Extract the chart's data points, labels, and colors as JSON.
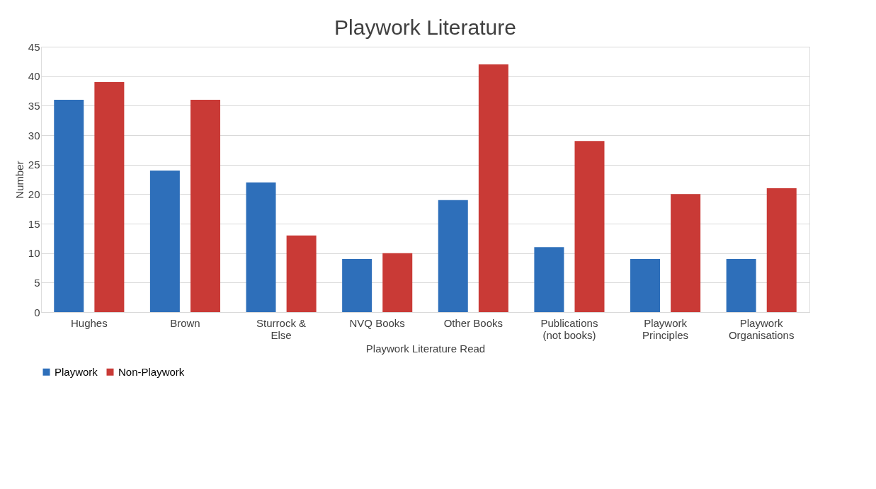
{
  "chart_data": {
    "type": "bar",
    "title": "Playwork Literature",
    "xlabel": "Playwork Literature Read",
    "ylabel": "Number",
    "categories": [
      "Hughes",
      "Brown",
      "Sturrock & Else",
      "NVQ Books",
      "Other Books",
      "Publications (not books)",
      "Playwork Principles",
      "Playwork Organisations"
    ],
    "series": [
      {
        "name": "Playwork",
        "color": "#2e6fba",
        "values": [
          36,
          24,
          22,
          9,
          19,
          11,
          9,
          9
        ]
      },
      {
        "name": "Non-Playwork",
        "color": "#c93a36",
        "values": [
          39,
          36,
          13,
          10,
          42,
          29,
          20,
          21
        ]
      }
    ],
    "ylim": [
      0,
      45
    ],
    "yticks": [
      0,
      5,
      10,
      15,
      20,
      25,
      30,
      35,
      40,
      45
    ],
    "grid": "y",
    "legend": "bottom"
  }
}
